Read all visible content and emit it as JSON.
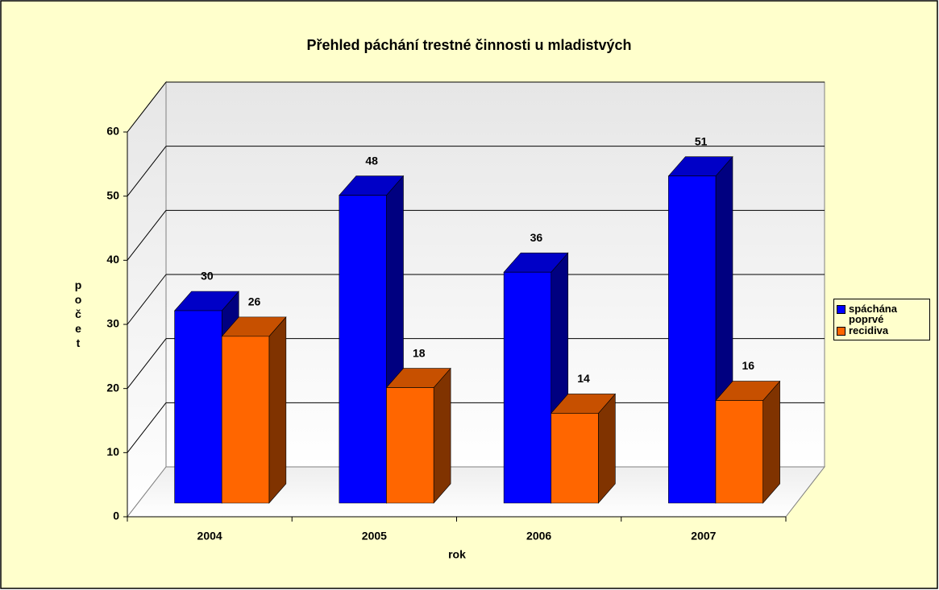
{
  "chart_data": {
    "type": "bar3d",
    "title": "Přehled páchání trestné činnosti u mladistvých",
    "xlabel": "rok",
    "ylabel": "počet",
    "categories": [
      "2004",
      "2005",
      "2006",
      "2007"
    ],
    "series": [
      {
        "name": "spáchána poprvé",
        "color": "#0000ff",
        "values": [
          30,
          48,
          36,
          51
        ]
      },
      {
        "name": "recidiva",
        "color": "#ff6600",
        "values": [
          26,
          18,
          14,
          16
        ]
      }
    ],
    "ylim": [
      0,
      60
    ],
    "yticks": [
      0,
      10,
      20,
      30,
      40,
      50,
      60
    ],
    "grid": true,
    "legend": "right"
  }
}
